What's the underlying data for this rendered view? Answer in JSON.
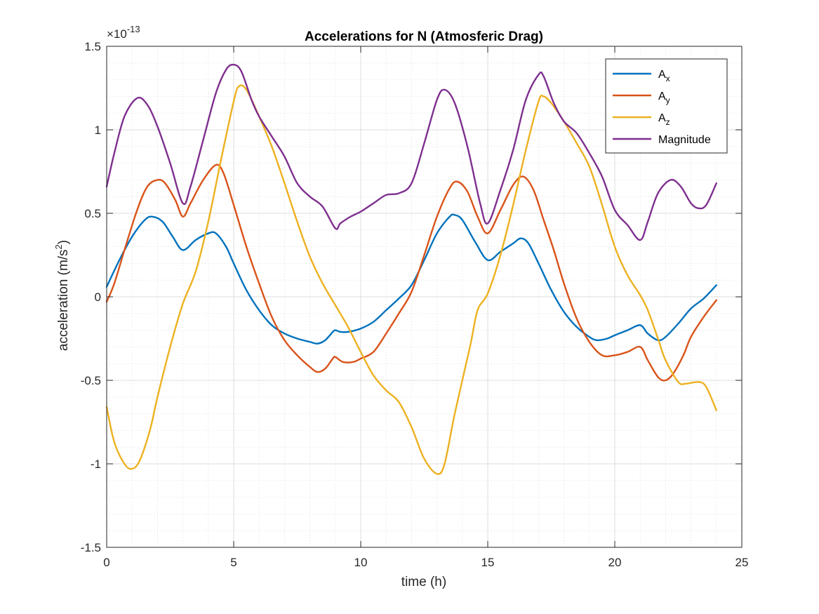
{
  "chart_data": {
    "type": "line",
    "title": "Accelerations for N (Atmosferic Drag)",
    "xlabel": "time (h)",
    "ylabel_main": "acceleration (m/s",
    "ylabel_sup": "2",
    "ylabel_tail": ")",
    "exponent_base": "×10",
    "exponent_power": "-13",
    "xlim": [
      0,
      25
    ],
    "ylim": [
      -1.5,
      1.5
    ],
    "xticks": [
      0,
      5,
      10,
      15,
      20,
      25
    ],
    "xtick_labels": [
      "0",
      "5",
      "10",
      "15",
      "20",
      "25"
    ],
    "yticks": [
      -1.5,
      -1,
      -0.5,
      0,
      0.5,
      1,
      1.5
    ],
    "ytick_labels": [
      "-1.5",
      "-1",
      "-0.5",
      "0",
      "0.5",
      "1",
      "1.5"
    ],
    "grid": true,
    "minor_grid": true,
    "legend_position": "top-right",
    "series": [
      {
        "name": "A",
        "subscript": "x",
        "color": "#0072BD",
        "points": [
          [
            0,
            0.06
          ],
          [
            0.5,
            0.22
          ],
          [
            1,
            0.36
          ],
          [
            1.5,
            0.46
          ],
          [
            1.8,
            0.48
          ],
          [
            2.2,
            0.45
          ],
          [
            2.6,
            0.36
          ],
          [
            3,
            0.28
          ],
          [
            3.5,
            0.34
          ],
          [
            4,
            0.38
          ],
          [
            4.3,
            0.38
          ],
          [
            4.7,
            0.3
          ],
          [
            5,
            0.2
          ],
          [
            5.5,
            0.04
          ],
          [
            6,
            -0.08
          ],
          [
            6.5,
            -0.17
          ],
          [
            7,
            -0.22
          ],
          [
            7.5,
            -0.25
          ],
          [
            8,
            -0.27
          ],
          [
            8.3,
            -0.28
          ],
          [
            8.6,
            -0.26
          ],
          [
            8.9,
            -0.21
          ],
          [
            9,
            -0.2
          ],
          [
            9.2,
            -0.21
          ],
          [
            9.5,
            -0.21
          ],
          [
            10,
            -0.19
          ],
          [
            10.5,
            -0.15
          ],
          [
            11,
            -0.08
          ],
          [
            11.5,
            -0.01
          ],
          [
            12,
            0.07
          ],
          [
            12.5,
            0.22
          ],
          [
            13,
            0.38
          ],
          [
            13.5,
            0.48
          ],
          [
            13.7,
            0.49
          ],
          [
            14,
            0.46
          ],
          [
            14.5,
            0.33
          ],
          [
            15,
            0.22
          ],
          [
            15.5,
            0.27
          ],
          [
            16,
            0.32
          ],
          [
            16.3,
            0.35
          ],
          [
            16.6,
            0.32
          ],
          [
            17,
            0.2
          ],
          [
            17.5,
            0.04
          ],
          [
            18,
            -0.09
          ],
          [
            18.5,
            -0.18
          ],
          [
            19,
            -0.24
          ],
          [
            19.3,
            -0.26
          ],
          [
            19.7,
            -0.25
          ],
          [
            20,
            -0.23
          ],
          [
            20.5,
            -0.2
          ],
          [
            21,
            -0.17
          ],
          [
            21.3,
            -0.22
          ],
          [
            21.7,
            -0.26
          ],
          [
            22,
            -0.24
          ],
          [
            22.5,
            -0.16
          ],
          [
            23,
            -0.07
          ],
          [
            23.5,
            -0.01
          ],
          [
            24,
            0.07
          ]
        ]
      },
      {
        "name": "A",
        "subscript": "y",
        "color": "#D95319",
        "points": [
          [
            0,
            -0.03
          ],
          [
            0.3,
            0.08
          ],
          [
            0.7,
            0.28
          ],
          [
            1.2,
            0.52
          ],
          [
            1.6,
            0.66
          ],
          [
            2,
            0.7
          ],
          [
            2.3,
            0.68
          ],
          [
            2.7,
            0.58
          ],
          [
            3,
            0.48
          ],
          [
            3.3,
            0.56
          ],
          [
            3.8,
            0.7
          ],
          [
            4.3,
            0.79
          ],
          [
            4.6,
            0.74
          ],
          [
            5,
            0.55
          ],
          [
            5.5,
            0.3
          ],
          [
            6,
            0.08
          ],
          [
            6.5,
            -0.12
          ],
          [
            7,
            -0.26
          ],
          [
            7.5,
            -0.35
          ],
          [
            8,
            -0.42
          ],
          [
            8.3,
            -0.45
          ],
          [
            8.6,
            -0.43
          ],
          [
            8.9,
            -0.37
          ],
          [
            9,
            -0.36
          ],
          [
            9.3,
            -0.39
          ],
          [
            9.7,
            -0.39
          ],
          [
            10,
            -0.37
          ],
          [
            10.5,
            -0.33
          ],
          [
            11,
            -0.22
          ],
          [
            11.5,
            -0.1
          ],
          [
            12,
            0.03
          ],
          [
            12.5,
            0.25
          ],
          [
            13,
            0.48
          ],
          [
            13.5,
            0.65
          ],
          [
            13.8,
            0.69
          ],
          [
            14.2,
            0.63
          ],
          [
            14.6,
            0.48
          ],
          [
            15,
            0.38
          ],
          [
            15.5,
            0.52
          ],
          [
            16,
            0.67
          ],
          [
            16.4,
            0.72
          ],
          [
            16.8,
            0.64
          ],
          [
            17.2,
            0.46
          ],
          [
            17.6,
            0.28
          ],
          [
            18,
            0.08
          ],
          [
            18.5,
            -0.13
          ],
          [
            19,
            -0.27
          ],
          [
            19.5,
            -0.35
          ],
          [
            20,
            -0.35
          ],
          [
            20.5,
            -0.33
          ],
          [
            21,
            -0.3
          ],
          [
            21.3,
            -0.38
          ],
          [
            21.7,
            -0.48
          ],
          [
            22,
            -0.5
          ],
          [
            22.3,
            -0.46
          ],
          [
            22.7,
            -0.35
          ],
          [
            23,
            -0.24
          ],
          [
            23.5,
            -0.12
          ],
          [
            24,
            -0.02
          ]
        ]
      },
      {
        "name": "A",
        "subscript": "z",
        "color": "#EDB120",
        "points": [
          [
            0,
            -0.66
          ],
          [
            0.3,
            -0.87
          ],
          [
            0.7,
            -1.0
          ],
          [
            1,
            -1.03
          ],
          [
            1.3,
            -0.98
          ],
          [
            1.7,
            -0.8
          ],
          [
            2,
            -0.6
          ],
          [
            2.5,
            -0.3
          ],
          [
            3,
            -0.04
          ],
          [
            3.5,
            0.15
          ],
          [
            4,
            0.45
          ],
          [
            4.5,
            0.82
          ],
          [
            5,
            1.17
          ],
          [
            5.2,
            1.26
          ],
          [
            5.5,
            1.24
          ],
          [
            6,
            1.08
          ],
          [
            6.5,
            0.9
          ],
          [
            7,
            0.68
          ],
          [
            7.5,
            0.45
          ],
          [
            8,
            0.24
          ],
          [
            8.5,
            0.08
          ],
          [
            9,
            -0.05
          ],
          [
            9.5,
            -0.18
          ],
          [
            10,
            -0.33
          ],
          [
            10.5,
            -0.47
          ],
          [
            11,
            -0.56
          ],
          [
            11.5,
            -0.63
          ],
          [
            12,
            -0.78
          ],
          [
            12.5,
            -0.97
          ],
          [
            13,
            -1.06
          ],
          [
            13.3,
            -1.0
          ],
          [
            13.7,
            -0.7
          ],
          [
            14.3,
            -0.3
          ],
          [
            14.6,
            -0.08
          ],
          [
            15,
            0.02
          ],
          [
            15.5,
            0.25
          ],
          [
            16,
            0.55
          ],
          [
            16.5,
            0.88
          ],
          [
            17,
            1.17
          ],
          [
            17.2,
            1.2
          ],
          [
            17.5,
            1.16
          ],
          [
            18,
            1.05
          ],
          [
            18.5,
            0.92
          ],
          [
            19,
            0.78
          ],
          [
            19.5,
            0.55
          ],
          [
            20,
            0.3
          ],
          [
            20.5,
            0.13
          ],
          [
            21,
            0.01
          ],
          [
            21.3,
            -0.08
          ],
          [
            21.7,
            -0.25
          ],
          [
            22,
            -0.38
          ],
          [
            22.5,
            -0.51
          ],
          [
            22.8,
            -0.52
          ],
          [
            23.3,
            -0.51
          ],
          [
            23.6,
            -0.54
          ],
          [
            24,
            -0.68
          ]
        ]
      },
      {
        "name": "Magnitude",
        "subscript": "",
        "color": "#7E2F8E",
        "points": [
          [
            0,
            0.66
          ],
          [
            0.3,
            0.86
          ],
          [
            0.7,
            1.08
          ],
          [
            1.2,
            1.19
          ],
          [
            1.6,
            1.15
          ],
          [
            2,
            1.02
          ],
          [
            2.5,
            0.8
          ],
          [
            3,
            0.56
          ],
          [
            3.3,
            0.66
          ],
          [
            3.8,
            0.94
          ],
          [
            4.3,
            1.22
          ],
          [
            4.7,
            1.36
          ],
          [
            5,
            1.39
          ],
          [
            5.3,
            1.35
          ],
          [
            5.7,
            1.18
          ],
          [
            6,
            1.08
          ],
          [
            6.5,
            0.96
          ],
          [
            7,
            0.84
          ],
          [
            7.5,
            0.68
          ],
          [
            8,
            0.6
          ],
          [
            8.5,
            0.54
          ],
          [
            9,
            0.41
          ],
          [
            9.2,
            0.44
          ],
          [
            9.6,
            0.48
          ],
          [
            10,
            0.51
          ],
          [
            10.5,
            0.56
          ],
          [
            11,
            0.61
          ],
          [
            11.5,
            0.62
          ],
          [
            12,
            0.68
          ],
          [
            12.5,
            0.92
          ],
          [
            13,
            1.18
          ],
          [
            13.3,
            1.24
          ],
          [
            13.7,
            1.16
          ],
          [
            14.2,
            0.9
          ],
          [
            14.7,
            0.56
          ],
          [
            15,
            0.44
          ],
          [
            15.5,
            0.64
          ],
          [
            16,
            0.88
          ],
          [
            16.5,
            1.18
          ],
          [
            17,
            1.33
          ],
          [
            17.2,
            1.32
          ],
          [
            17.6,
            1.16
          ],
          [
            18,
            1.05
          ],
          [
            18.5,
            0.98
          ],
          [
            19,
            0.86
          ],
          [
            19.5,
            0.72
          ],
          [
            20,
            0.52
          ],
          [
            20.5,
            0.43
          ],
          [
            21,
            0.34
          ],
          [
            21.3,
            0.45
          ],
          [
            21.7,
            0.62
          ],
          [
            22.2,
            0.7
          ],
          [
            22.6,
            0.66
          ],
          [
            23,
            0.56
          ],
          [
            23.3,
            0.53
          ],
          [
            23.6,
            0.55
          ],
          [
            24,
            0.68
          ]
        ]
      }
    ]
  }
}
